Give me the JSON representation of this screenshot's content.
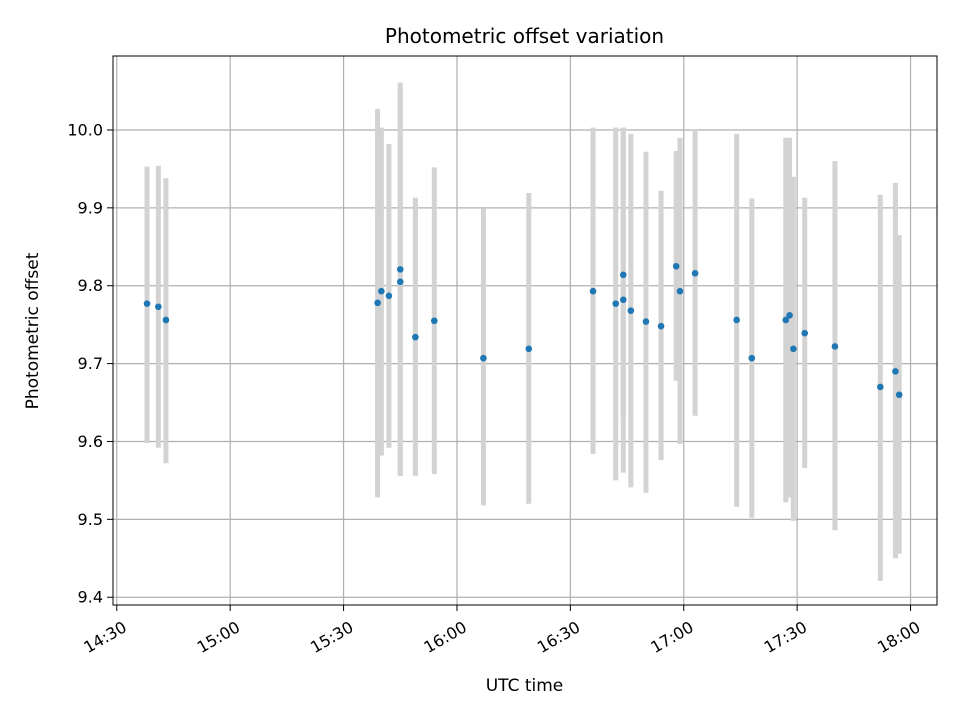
{
  "chart_data": {
    "type": "scatter",
    "title": "Photometric offset variation",
    "xlabel": "UTC time",
    "ylabel": "Photometric offset",
    "x_ticks": [
      "14:30",
      "15:00",
      "15:30",
      "16:00",
      "16:30",
      "17:00",
      "17:30",
      "18:00"
    ],
    "y_ticks": [
      "9.4",
      "9.5",
      "9.6",
      "9.7",
      "9.8",
      "9.9",
      "10.0"
    ],
    "xlim": [
      "14:29",
      "18:07"
    ],
    "ylim": [
      9.39,
      10.095
    ],
    "grid": true,
    "colors": {
      "point": "#1f77b4",
      "errorbar": "#d3d3d3",
      "grid": "#b0b0b0"
    },
    "points": [
      {
        "x": "14:38",
        "y": 9.777,
        "y_low": 9.598,
        "y_high": 9.953
      },
      {
        "x": "14:41",
        "y": 9.773,
        "y_low": 9.592,
        "y_high": 9.954
      },
      {
        "x": "14:43",
        "y": 9.756,
        "y_low": 9.572,
        "y_high": 9.938
      },
      {
        "x": "15:39",
        "y": 9.778,
        "y_low": 9.528,
        "y_high": 10.027
      },
      {
        "x": "15:40",
        "y": 9.793,
        "y_low": 9.582,
        "y_high": 10.003
      },
      {
        "x": "15:42",
        "y": 9.787,
        "y_low": 9.592,
        "y_high": 9.982
      },
      {
        "x": "15:45",
        "y": 9.821,
        "y_low": 9.556,
        "y_high": 10.061
      },
      {
        "x": "15:45",
        "y": 9.805,
        "y_low": 9.556,
        "y_high": 10.054
      },
      {
        "x": "15:49",
        "y": 9.734,
        "y_low": 9.556,
        "y_high": 9.913
      },
      {
        "x": "15:54",
        "y": 9.755,
        "y_low": 9.558,
        "y_high": 9.952
      },
      {
        "x": "16:07",
        "y": 9.707,
        "y_low": 9.518,
        "y_high": 9.899
      },
      {
        "x": "16:19",
        "y": 9.719,
        "y_low": 9.52,
        "y_high": 9.919
      },
      {
        "x": "16:36",
        "y": 9.793,
        "y_low": 9.584,
        "y_high": 10.003
      },
      {
        "x": "16:42",
        "y": 9.777,
        "y_low": 9.55,
        "y_high": 10.003
      },
      {
        "x": "16:44",
        "y": 9.814,
        "y_low": 9.628,
        "y_high": 10.003
      },
      {
        "x": "16:44",
        "y": 9.782,
        "y_low": 9.56,
        "y_high": 10.003
      },
      {
        "x": "16:46",
        "y": 9.768,
        "y_low": 9.541,
        "y_high": 9.995
      },
      {
        "x": "16:50",
        "y": 9.754,
        "y_low": 9.534,
        "y_high": 9.972
      },
      {
        "x": "16:54",
        "y": 9.748,
        "y_low": 9.576,
        "y_high": 9.922
      },
      {
        "x": "16:58",
        "y": 9.825,
        "y_low": 9.678,
        "y_high": 9.973
      },
      {
        "x": "16:59",
        "y": 9.793,
        "y_low": 9.597,
        "y_high": 9.99
      },
      {
        "x": "17:03",
        "y": 9.816,
        "y_low": 9.633,
        "y_high": 10.0
      },
      {
        "x": "17:14",
        "y": 9.756,
        "y_low": 9.516,
        "y_high": 9.995
      },
      {
        "x": "17:18",
        "y": 9.707,
        "y_low": 9.502,
        "y_high": 9.912
      },
      {
        "x": "17:27",
        "y": 9.756,
        "y_low": 9.522,
        "y_high": 9.99
      },
      {
        "x": "17:28",
        "y": 9.762,
        "y_low": 9.528,
        "y_high": 9.99
      },
      {
        "x": "17:29",
        "y": 9.719,
        "y_low": 9.498,
        "y_high": 9.94
      },
      {
        "x": "17:32",
        "y": 9.739,
        "y_low": 9.566,
        "y_high": 9.913
      },
      {
        "x": "17:40",
        "y": 9.722,
        "y_low": 9.486,
        "y_high": 9.96
      },
      {
        "x": "17:52",
        "y": 9.67,
        "y_low": 9.421,
        "y_high": 9.917
      },
      {
        "x": "17:56",
        "y": 9.69,
        "y_low": 9.45,
        "y_high": 9.932
      },
      {
        "x": "17:57",
        "y": 9.66,
        "y_low": 9.456,
        "y_high": 9.865
      }
    ]
  }
}
